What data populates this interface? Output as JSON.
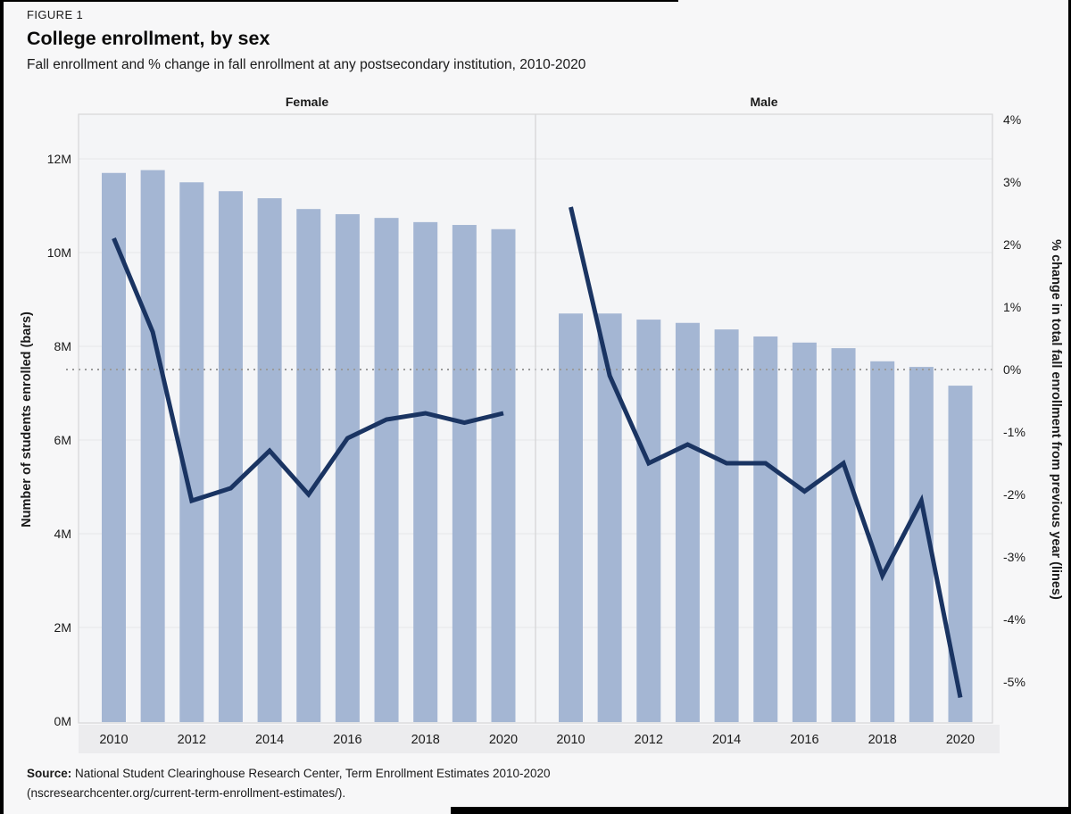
{
  "figure_label": "FIGURE 1",
  "title": "College enrollment, by sex",
  "subtitle": "Fall enrollment and % change in fall enrollment at any postsecondary institution, 2010-2020",
  "source": {
    "label": "Source:",
    "line1": " National Student Clearinghouse Research Center, Term Enrollment Estimates 2010-2020",
    "line2": "(nscresearchcenter.org/current-term-enrollment-estimates/)."
  },
  "colors": {
    "bar": "#a4b6d3",
    "line": "#1a3462",
    "grid": "#e6e6e8",
    "zero_dotted_line": "#9a9a9a",
    "panel_bg": "#f4f5f7",
    "page_bg": "#f7f7f8",
    "panel_border": "#d6d6d8",
    "axis_strip": "#ececee",
    "text": "#1a1a1a"
  },
  "left_axis": {
    "title": "Number of students enrolled (bars)",
    "ticks": [
      "0M",
      "2M",
      "4M",
      "6M",
      "8M",
      "10M",
      "12M"
    ],
    "tick_values": [
      0,
      2,
      4,
      6,
      8,
      10,
      12
    ]
  },
  "right_axis": {
    "title": "% change in total fall enrollment from previous year (lines)",
    "ticks": [
      "4%",
      "3%",
      "2%",
      "1%",
      "0%",
      "-1%",
      "-2%",
      "-3%",
      "-4%",
      "-5%"
    ],
    "tick_values": [
      4,
      3,
      2,
      1,
      0,
      -1,
      -2,
      -3,
      -4,
      -5
    ]
  },
  "x_axis": {
    "tick_years": [
      "2010",
      "2012",
      "2014",
      "2016",
      "2018",
      "2020"
    ]
  },
  "chart_data": [
    {
      "type": "bar",
      "panel_title": "Female",
      "x": [
        2010,
        2011,
        2012,
        2013,
        2014,
        2015,
        2016,
        2017,
        2018,
        2019,
        2020
      ],
      "series": [
        {
          "name": "Fall enrollment (millions, bars)",
          "render": "bar",
          "axis": "left",
          "values": [
            11.7,
            11.76,
            11.5,
            11.31,
            11.16,
            10.93,
            10.82,
            10.74,
            10.65,
            10.59,
            10.5
          ]
        },
        {
          "name": "% change in fall enrollment from previous year (line)",
          "render": "line",
          "axis": "right",
          "values": [
            2.1,
            0.6,
            -2.1,
            -1.9,
            -1.3,
            -2.0,
            -1.1,
            -0.8,
            -0.7,
            -0.85,
            -0.7
          ]
        }
      ],
      "left_ylim": [
        0,
        13
      ],
      "right_ylim": [
        -5.65,
        4.1
      ],
      "grid": true,
      "legend_position": "none"
    },
    {
      "type": "bar",
      "panel_title": "Male",
      "x": [
        2010,
        2011,
        2012,
        2013,
        2014,
        2015,
        2016,
        2017,
        2018,
        2019,
        2020
      ],
      "series": [
        {
          "name": "Fall enrollment (millions, bars)",
          "render": "bar",
          "axis": "left",
          "values": [
            8.7,
            8.7,
            8.57,
            8.5,
            8.36,
            8.21,
            8.08,
            7.96,
            7.68,
            7.56,
            7.16
          ]
        },
        {
          "name": "% change in fall enrollment from previous year (line)",
          "render": "line",
          "axis": "right",
          "values": [
            2.6,
            -0.1,
            -1.5,
            -1.2,
            -1.5,
            -1.5,
            -1.95,
            -1.5,
            -3.3,
            -2.1,
            -5.25
          ]
        }
      ],
      "left_ylim": [
        0,
        13
      ],
      "right_ylim": [
        -5.65,
        4.1
      ],
      "grid": true,
      "legend_position": "none"
    }
  ]
}
